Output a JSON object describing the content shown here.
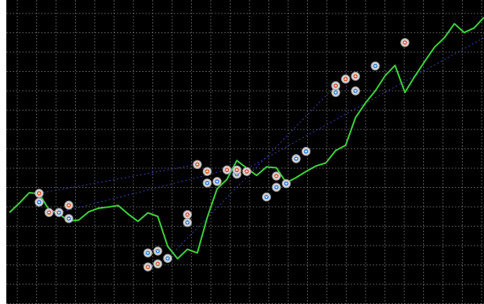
{
  "chart_data": {
    "type": "line",
    "title": "",
    "xlabel": "",
    "ylabel": "",
    "grid": true,
    "background": "#000000",
    "grid_color": "#8a8a8a",
    "line_color": "#3cd23c",
    "buy_marker_color": "#3a7fd0",
    "sell_marker_color": "#d85a3c",
    "trade_link_color": "#3b3f9e",
    "xlim": [
      0,
      48
    ],
    "ylim": [
      0,
      100
    ],
    "series": [
      {
        "values": [
          30.1,
          33.2,
          36.6,
          36.3,
          31.0,
          29.7,
          27.3,
          27.6,
          30.3,
          31.5,
          31.9,
          32.4,
          29.6,
          27.2,
          30.0,
          28.8,
          19.0,
          14.9,
          18.0,
          16.8,
          28.4,
          37.9,
          41.0,
          47.2,
          44.7,
          42.3,
          45.1,
          44.8,
          39.9,
          41.6,
          43.6,
          45.4,
          46.4,
          50.5,
          52.2,
          61.3,
          66.1,
          70.1,
          75.1,
          78.5,
          69.6,
          74.9,
          79.8,
          84.5,
          87.6,
          92.2,
          89.3,
          90.8,
          94.3
        ]
      }
    ],
    "buy_markers": [
      {
        "x": 3,
        "y": 33.5
      },
      {
        "x": 5,
        "y": 30.1
      },
      {
        "x": 6,
        "y": 28.1
      },
      {
        "x": 14,
        "y": 16.8
      },
      {
        "x": 15,
        "y": 17.4
      },
      {
        "x": 16,
        "y": 15.0
      },
      {
        "x": 18,
        "y": 26.8
      },
      {
        "x": 20,
        "y": 39.8
      },
      {
        "x": 21,
        "y": 40.3
      },
      {
        "x": 23,
        "y": 42.7
      },
      {
        "x": 26,
        "y": 35.2
      },
      {
        "x": 27,
        "y": 38.4
      },
      {
        "x": 28,
        "y": 39.6
      },
      {
        "x": 29,
        "y": 47.8
      },
      {
        "x": 30,
        "y": 50.2
      },
      {
        "x": 33,
        "y": 69.6
      },
      {
        "x": 35,
        "y": 70.1
      },
      {
        "x": 37,
        "y": 78.3
      }
    ],
    "sell_markers": [
      {
        "x": 3,
        "y": 36.4
      },
      {
        "x": 4,
        "y": 30.1
      },
      {
        "x": 6,
        "y": 32.5
      },
      {
        "x": 14,
        "y": 12.2
      },
      {
        "x": 15,
        "y": 13.2
      },
      {
        "x": 18,
        "y": 29.4
      },
      {
        "x": 19,
        "y": 45.9
      },
      {
        "x": 20,
        "y": 43.6
      },
      {
        "x": 22,
        "y": 44.1
      },
      {
        "x": 23,
        "y": 44.1
      },
      {
        "x": 24,
        "y": 43.6
      },
      {
        "x": 27,
        "y": 42.1
      },
      {
        "x": 33,
        "y": 71.8
      },
      {
        "x": 34,
        "y": 74.0
      },
      {
        "x": 35,
        "y": 74.9
      },
      {
        "x": 40,
        "y": 86.0
      }
    ],
    "trade_links": [
      {
        "x1": 3,
        "y1": 36.4,
        "x2": 19,
        "y2": 45.9
      },
      {
        "x1": 5,
        "y1": 30.1,
        "x2": 22,
        "y2": 44.1
      },
      {
        "x1": 16,
        "y1": 15.0,
        "x2": 33,
        "y2": 71.8
      },
      {
        "x1": 23,
        "y1": 42.7,
        "x2": 48,
        "y2": 87.6
      }
    ]
  }
}
